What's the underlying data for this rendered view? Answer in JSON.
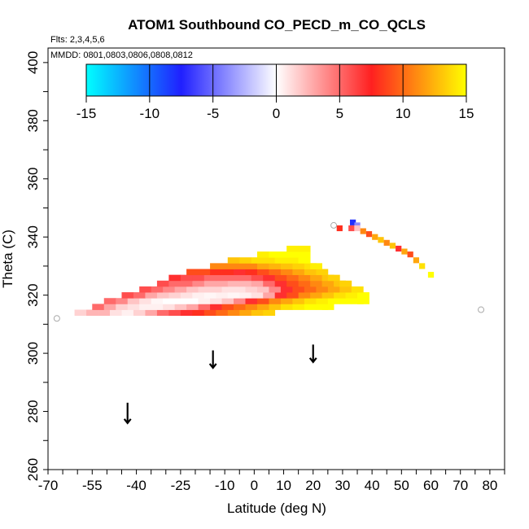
{
  "chart_data": {
    "type": "heatmap",
    "title": "ATOM1 Southbound CO_PECD_m_CO_QCLS",
    "flights_label": "Flts: 2,3,4,5,6",
    "dates_label": "MMDD: 0801,0803,0806,0808,0812",
    "xlabel": "Latitude (deg N)",
    "ylabel": "Theta (C)",
    "xlim": [
      -70,
      85
    ],
    "ylim": [
      260,
      405
    ],
    "x_tick_labels": [
      "-70",
      "-55",
      "-40",
      "-25",
      "-10",
      "0",
      "10",
      "20",
      "30",
      "40",
      "50",
      "60",
      "70",
      "80"
    ],
    "y_tick_labels": [
      "260",
      "280",
      "300",
      "320",
      "340",
      "360",
      "380",
      "400"
    ],
    "colorbar": {
      "min": -15,
      "max": 15,
      "tick_labels": [
        "-15",
        "-10",
        "-5",
        "0",
        "5",
        "10",
        "15"
      ],
      "colors": [
        "#00ffff",
        "#2020ff",
        "#ffffff",
        "#ff2020",
        "#ffff00"
      ]
    },
    "empty_circles": [
      {
        "lat": -67,
        "theta": 312
      },
      {
        "lat": 27,
        "theta": 344
      },
      {
        "lat": 77,
        "theta": 315
      }
    ],
    "arrows": [
      {
        "lat": -43,
        "theta_top": 283,
        "theta_bottom": 276
      },
      {
        "lat": -14,
        "theta_top": 301,
        "theta_bottom": 295
      },
      {
        "lat": 20,
        "theta_top": 303,
        "theta_bottom": 297
      }
    ],
    "main_cells": [
      [
        -59,
        314,
        1.5
      ],
      [
        -55,
        314,
        2.5
      ],
      [
        -51,
        314,
        2.5
      ],
      [
        -47,
        314,
        1
      ],
      [
        -43,
        314,
        0.5
      ],
      [
        -39,
        314,
        1.5
      ],
      [
        -35,
        314,
        3
      ],
      [
        -31,
        314,
        5
      ],
      [
        -27,
        314,
        6
      ],
      [
        -23,
        314,
        7
      ],
      [
        -19,
        314,
        8
      ],
      [
        -15,
        314,
        9
      ],
      [
        -11,
        314,
        10
      ],
      [
        -7,
        314,
        11
      ],
      [
        -3,
        314,
        12
      ],
      [
        1,
        314,
        13
      ],
      [
        5,
        314,
        13.5
      ],
      [
        -53,
        316,
        5
      ],
      [
        -49,
        316,
        3
      ],
      [
        -45,
        316,
        1.5
      ],
      [
        -41,
        316,
        1
      ],
      [
        -37,
        316,
        0.5
      ],
      [
        -33,
        316,
        0.5
      ],
      [
        -29,
        316,
        1
      ],
      [
        -25,
        316,
        2
      ],
      [
        -21,
        316,
        3
      ],
      [
        -17,
        316,
        5
      ],
      [
        -13,
        316,
        7
      ],
      [
        -9,
        316,
        9
      ],
      [
        -5,
        316,
        10
      ],
      [
        -1,
        316,
        11
      ],
      [
        3,
        316,
        12
      ],
      [
        7,
        316,
        13
      ],
      [
        11,
        316,
        14
      ],
      [
        15,
        316,
        14.5
      ],
      [
        19,
        316,
        15
      ],
      [
        23,
        316,
        15
      ],
      [
        25,
        316,
        15
      ],
      [
        -49,
        318,
        5
      ],
      [
        -45,
        318,
        4
      ],
      [
        -41,
        318,
        2
      ],
      [
        -37,
        318,
        1
      ],
      [
        -33,
        318,
        0.3
      ],
      [
        -29,
        318,
        0
      ],
      [
        -25,
        318,
        0
      ],
      [
        -21,
        318,
        0
      ],
      [
        -17,
        318,
        0.5
      ],
      [
        -13,
        318,
        1
      ],
      [
        -9,
        318,
        2
      ],
      [
        -5,
        318,
        4
      ],
      [
        -1,
        318,
        7
      ],
      [
        3,
        318,
        9
      ],
      [
        7,
        318,
        11
      ],
      [
        11,
        318,
        12
      ],
      [
        15,
        318,
        13
      ],
      [
        19,
        318,
        14
      ],
      [
        23,
        318,
        14.5
      ],
      [
        27,
        318,
        15
      ],
      [
        31,
        318,
        15
      ],
      [
        35,
        318,
        15
      ],
      [
        37,
        318,
        15
      ],
      [
        -43,
        320,
        6
      ],
      [
        -39,
        320,
        5
      ],
      [
        -35,
        320,
        3
      ],
      [
        -31,
        320,
        2
      ],
      [
        -27,
        320,
        1.5
      ],
      [
        -23,
        320,
        1
      ],
      [
        -19,
        320,
        0.5
      ],
      [
        -15,
        320,
        0.3
      ],
      [
        -11,
        320,
        0.5
      ],
      [
        -7,
        320,
        0.3
      ],
      [
        -3,
        320,
        0.5
      ],
      [
        1,
        320,
        1
      ],
      [
        5,
        320,
        3
      ],
      [
        9,
        320,
        7
      ],
      [
        13,
        320,
        9
      ],
      [
        17,
        320,
        11
      ],
      [
        21,
        320,
        12
      ],
      [
        25,
        320,
        13
      ],
      [
        29,
        320,
        14
      ],
      [
        33,
        320,
        14.5
      ],
      [
        37,
        320,
        15
      ],
      [
        -37,
        322,
        6
      ],
      [
        -33,
        322,
        5
      ],
      [
        -29,
        322,
        4
      ],
      [
        -25,
        322,
        3
      ],
      [
        -21,
        322,
        2
      ],
      [
        -17,
        322,
        1.5
      ],
      [
        -13,
        322,
        1.5
      ],
      [
        -9,
        322,
        1
      ],
      [
        -5,
        322,
        1
      ],
      [
        -1,
        322,
        1.5
      ],
      [
        3,
        322,
        2
      ],
      [
        7,
        322,
        4
      ],
      [
        11,
        322,
        7
      ],
      [
        15,
        322,
        9
      ],
      [
        19,
        322,
        10
      ],
      [
        23,
        322,
        11
      ],
      [
        27,
        322,
        12
      ],
      [
        31,
        322,
        13
      ],
      [
        35,
        322,
        14
      ],
      [
        -31,
        324,
        6
      ],
      [
        -27,
        324,
        5
      ],
      [
        -23,
        324,
        5
      ],
      [
        -19,
        324,
        4
      ],
      [
        -15,
        324,
        3
      ],
      [
        -11,
        324,
        3
      ],
      [
        -7,
        324,
        2.5
      ],
      [
        -3,
        324,
        2.5
      ],
      [
        1,
        324,
        3
      ],
      [
        5,
        324,
        5
      ],
      [
        9,
        324,
        7
      ],
      [
        13,
        324,
        9
      ],
      [
        17,
        324,
        10
      ],
      [
        21,
        324,
        11
      ],
      [
        25,
        324,
        12
      ],
      [
        29,
        324,
        13
      ],
      [
        31,
        324,
        13.5
      ],
      [
        -27,
        326,
        7
      ],
      [
        -23,
        326,
        6
      ],
      [
        -19,
        326,
        6
      ],
      [
        -15,
        326,
        5
      ],
      [
        -11,
        326,
        5
      ],
      [
        -7,
        326,
        5
      ],
      [
        -3,
        326,
        5
      ],
      [
        1,
        326,
        6
      ],
      [
        5,
        326,
        7
      ],
      [
        9,
        326,
        9
      ],
      [
        13,
        326,
        10
      ],
      [
        17,
        326,
        11
      ],
      [
        21,
        326,
        12
      ],
      [
        25,
        326,
        13
      ],
      [
        27,
        326,
        13.5
      ],
      [
        -21,
        328,
        9
      ],
      [
        -17,
        328,
        9
      ],
      [
        -13,
        328,
        8
      ],
      [
        -9,
        328,
        8
      ],
      [
        -5,
        328,
        7
      ],
      [
        -1,
        328,
        8
      ],
      [
        3,
        328,
        9
      ],
      [
        7,
        328,
        10
      ],
      [
        11,
        328,
        11
      ],
      [
        15,
        328,
        12
      ],
      [
        19,
        328,
        13
      ],
      [
        23,
        328,
        13.5
      ],
      [
        -13,
        330,
        11
      ],
      [
        -9,
        330,
        11
      ],
      [
        -5,
        330,
        11
      ],
      [
        -1,
        330,
        11
      ],
      [
        3,
        330,
        12
      ],
      [
        7,
        330,
        12.5
      ],
      [
        11,
        330,
        13
      ],
      [
        15,
        330,
        13.5
      ],
      [
        19,
        330,
        14
      ],
      [
        21,
        330,
        14.5
      ],
      [
        -7,
        332,
        13
      ],
      [
        -3,
        332,
        13.5
      ],
      [
        1,
        332,
        14
      ],
      [
        5,
        332,
        14
      ],
      [
        9,
        332,
        14.5
      ],
      [
        13,
        332,
        14.5
      ],
      [
        17,
        332,
        15
      ],
      [
        3,
        334,
        14.5
      ],
      [
        7,
        334,
        15
      ],
      [
        11,
        334,
        15
      ],
      [
        15,
        334,
        15
      ],
      [
        17,
        334,
        15
      ],
      [
        13,
        336,
        14.5
      ],
      [
        17,
        336,
        14.5
      ]
    ],
    "trail_cells": [
      [
        33.5,
        345,
        -8
      ],
      [
        35,
        344,
        -4
      ],
      [
        29,
        343,
        8
      ],
      [
        33,
        343,
        6
      ],
      [
        35,
        343,
        2
      ],
      [
        37,
        342,
        11
      ],
      [
        39,
        341,
        9
      ],
      [
        41,
        340,
        12
      ],
      [
        43,
        339,
        13
      ],
      [
        45,
        338,
        11
      ],
      [
        47,
        337,
        13
      ],
      [
        49,
        336,
        7
      ],
      [
        51,
        335,
        12
      ],
      [
        53,
        334,
        9
      ],
      [
        55,
        332,
        12
      ],
      [
        57,
        330,
        14
      ],
      [
        60,
        327,
        15
      ]
    ]
  }
}
